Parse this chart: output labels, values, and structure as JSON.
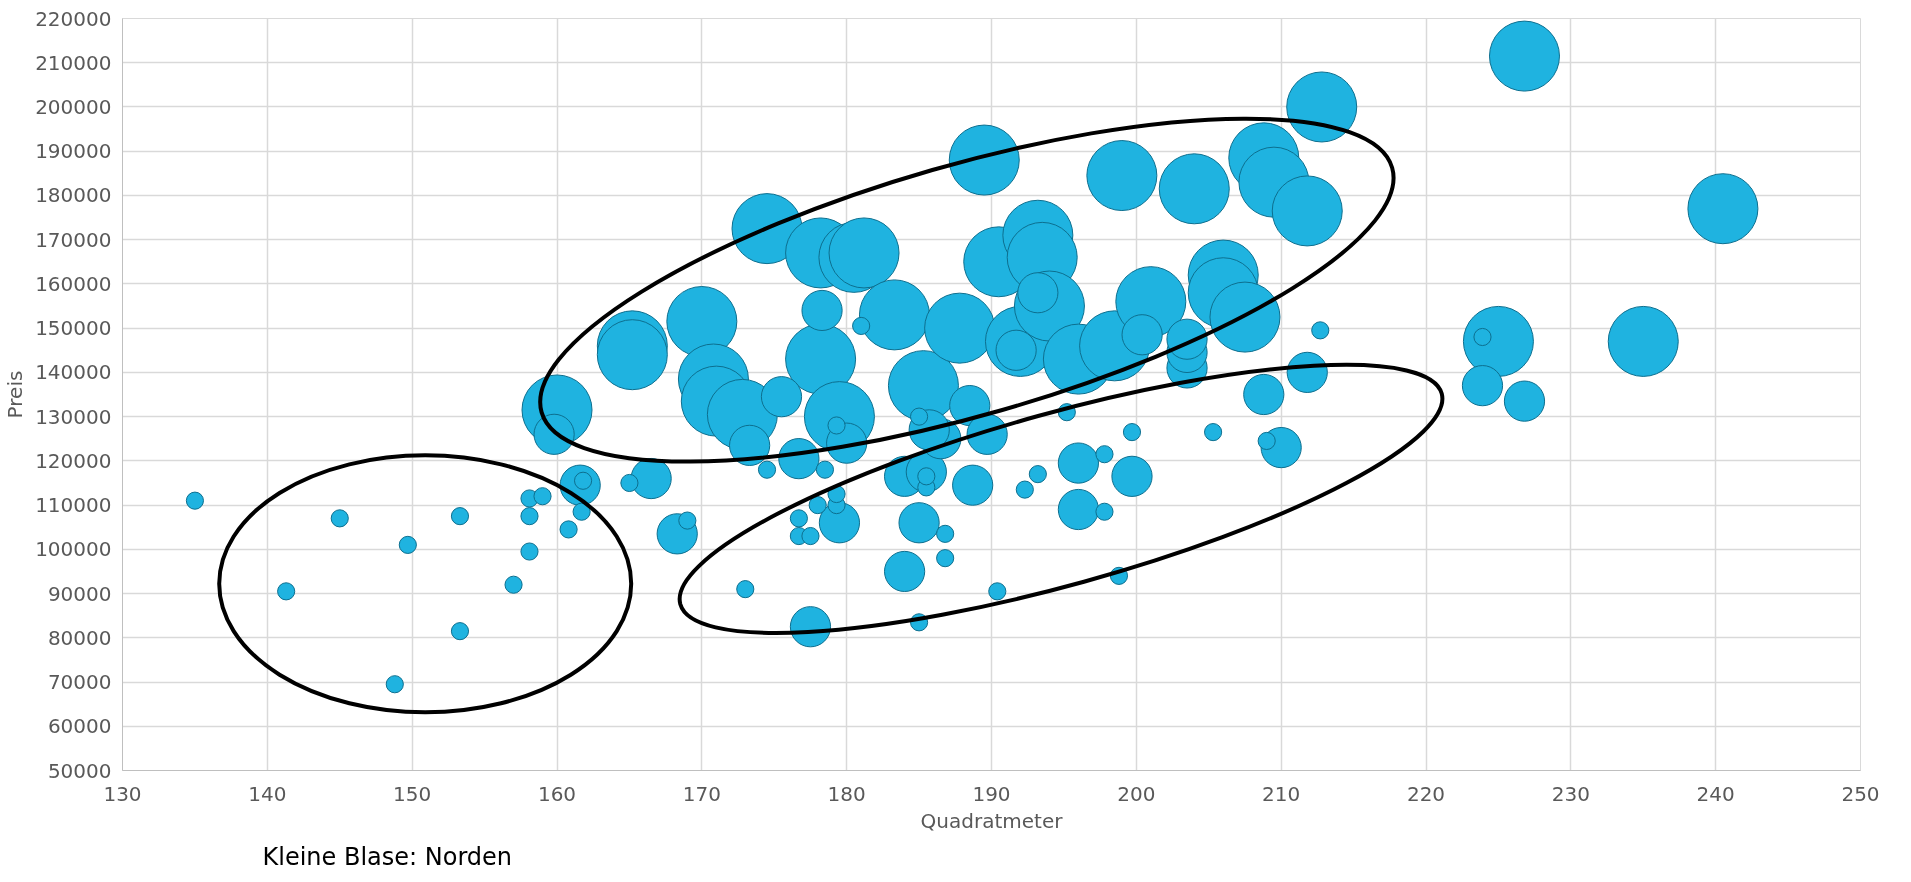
{
  "chart_data": {
    "type": "bubble",
    "xlabel": "Quadratmeter",
    "ylabel": "Preis",
    "annotations": [
      "Kleine Blase: Norden"
    ],
    "xlim": [
      130,
      250
    ],
    "xticks": [
      130,
      140,
      150,
      160,
      170,
      180,
      190,
      200,
      210,
      220,
      230,
      240,
      250
    ],
    "ylim": [
      50000,
      220000
    ],
    "yticks": [
      50000,
      60000,
      70000,
      80000,
      90000,
      100000,
      110000,
      120000,
      130000,
      140000,
      150000,
      160000,
      170000,
      180000,
      190000,
      200000,
      210000,
      220000
    ],
    "grid": true,
    "series": [
      {
        "color": "#1fb3e0",
        "x": [
          135,
          141.3,
          145,
          148.8,
          149.7,
          153.3,
          153.3,
          157,
          158.1,
          158.1,
          158.1,
          159,
          160.8,
          161.7,
          161.8,
          165,
          169,
          173,
          174.5,
          176.7,
          176.7,
          177.5,
          178,
          178.5,
          179.3,
          179.3,
          179.3,
          181,
          185,
          185,
          185.5,
          185.5,
          186.8,
          186.8,
          190.4,
          192.3,
          193.2,
          195.2,
          197.8,
          197.8,
          198.8,
          199.7,
          205.3,
          209,
          212.7,
          223.9,
          159.8,
          161.6,
          166.5,
          168.3,
          175.5,
          173.3,
          176.7,
          178.3,
          180,
          179.5,
          184,
          184,
          185,
          185.5,
          186.5,
          185.7,
          188.7,
          188.5,
          189.7,
          191.7,
          193.2,
          196,
          196,
          199.7,
          200.4,
          203.5,
          203.5,
          203.5,
          208.8,
          210,
          211.8,
          223.9,
          226.8,
          177.5,
          160,
          165.2,
          165.2,
          170,
          170.8,
          171,
          172.8,
          174.5,
          178.2,
          180.5,
          181.2,
          178.2,
          179.5,
          183.3,
          185.3,
          187.8,
          189.5,
          190.5,
          192,
          193.2,
          193.5,
          194,
          196,
          198.5,
          199,
          201,
          204,
          206,
          206,
          207.5,
          208.8,
          209.5,
          211.8,
          212.8,
          225,
          226.8,
          235,
          240.5
        ],
        "values": [
          111000,
          90500,
          107000,
          69500,
          101000,
          107500,
          81500,
          92000,
          111500,
          107500,
          99500,
          112000,
          104500,
          108500,
          115500,
          115000,
          106500,
          91000,
          118000,
          107000,
          103000,
          103000,
          110000,
          118000,
          110000,
          112500,
          128000,
          150500,
          83500,
          130000,
          114000,
          116500,
          98000,
          103500,
          90500,
          113500,
          117000,
          131000,
          108500,
          121500,
          94000,
          126500,
          126500,
          124500,
          149500,
          148000,
          126000,
          114500,
          116000,
          103500,
          134500,
          123500,
          120500,
          154000,
          124000,
          106000,
          95000,
          116500,
          106000,
          117500,
          125000,
          127000,
          114500,
          132500,
          126000,
          145000,
          158000,
          109000,
          119500,
          116500,
          148500,
          141000,
          144500,
          147500,
          135000,
          123000,
          140000,
          137000,
          133500,
          82500,
          131500,
          146000,
          144000,
          151500,
          138500,
          133500,
          130500,
          172500,
          167000,
          166000,
          167000,
          143000,
          130000,
          153000,
          137000,
          150000,
          188000,
          165000,
          147000,
          171000,
          166000,
          155000,
          143000,
          146000,
          184500,
          156000,
          181500,
          162000,
          158000,
          152500,
          188500,
          183000,
          176500,
          200000,
          147000,
          211500,
          147000,
          177000
        ],
        "sizes": [
          0.06,
          0.06,
          0.06,
          0.06,
          0.06,
          0.06,
          0.06,
          0.06,
          0.06,
          0.06,
          0.06,
          0.06,
          0.06,
          0.06,
          0.06,
          0.06,
          0.06,
          0.06,
          0.06,
          0.06,
          0.06,
          0.06,
          0.06,
          0.06,
          0.06,
          0.06,
          0.06,
          0.06,
          0.06,
          0.06,
          0.06,
          0.06,
          0.06,
          0.06,
          0.06,
          0.06,
          0.06,
          0.06,
          0.06,
          0.06,
          0.06,
          0.06,
          0.06,
          0.06,
          0.06,
          0.06,
          0.33,
          0.33,
          0.33,
          0.33,
          0.33,
          0.33,
          0.33,
          0.33,
          0.33,
          0.33,
          0.33,
          0.33,
          0.33,
          0.33,
          0.33,
          0.33,
          0.33,
          0.33,
          0.33,
          0.33,
          0.33,
          0.33,
          0.33,
          0.33,
          0.33,
          0.33,
          0.33,
          0.33,
          0.33,
          0.33,
          0.33,
          0.33,
          0.33,
          0.33,
          1,
          1,
          1,
          1,
          1,
          1,
          1,
          1,
          1,
          1,
          1,
          1,
          1,
          1,
          1,
          1,
          1,
          1,
          1,
          1,
          1,
          1,
          1,
          1,
          1,
          1,
          1,
          1,
          1,
          1,
          1,
          1,
          1,
          1,
          1,
          1,
          1,
          1
        ]
      }
    ]
  }
}
